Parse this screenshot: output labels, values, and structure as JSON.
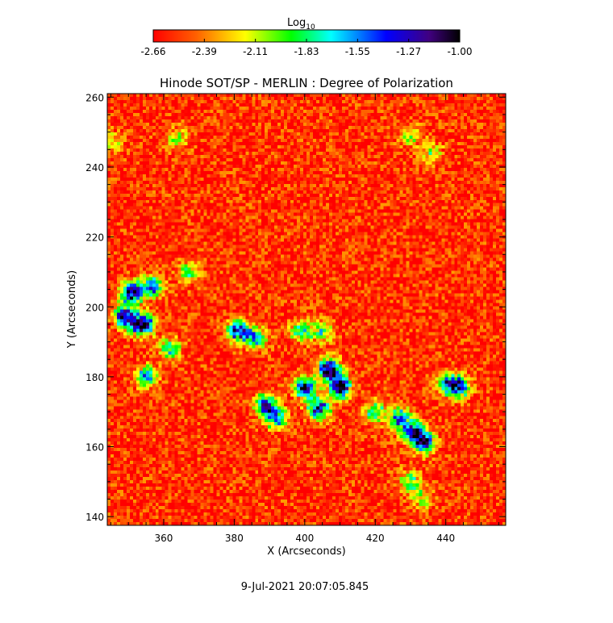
{
  "chart_data": {
    "type": "heatmap",
    "title": "Hinode SOT/SP - MERLIN : Degree of Polarization",
    "xlabel": "X (Arcseconds)",
    "ylabel": "Y (Arcseconds)",
    "xlim": [
      344,
      457
    ],
    "ylim": [
      137.5,
      261
    ],
    "x_ticks": [
      "360",
      "380",
      "400",
      "420",
      "440"
    ],
    "y_ticks": [
      "140",
      "160",
      "180",
      "200",
      "220",
      "240",
      "260"
    ],
    "x_tick_values": [
      360,
      380,
      400,
      420,
      440
    ],
    "y_tick_values": [
      140,
      160,
      180,
      200,
      220,
      240,
      260
    ],
    "colorbar": {
      "label_base": "Log",
      "label_sub": "10",
      "ticks": [
        "-2.66",
        "-2.39",
        "-2.11",
        "-1.83",
        "-1.55",
        "-1.27",
        "-1.00"
      ],
      "range": [
        -2.66,
        -1.0
      ],
      "colors": [
        "#ff0000",
        "#ff8000",
        "#ffff00",
        "#00ff00",
        "#00ffff",
        "#0000ff",
        "#000000"
      ]
    },
    "background_level": -2.55,
    "polarized_regions": [
      {
        "x": 351,
        "y": 204,
        "strength": 1.0
      },
      {
        "x": 354,
        "y": 195,
        "strength": 1.0
      },
      {
        "x": 349,
        "y": 197,
        "strength": 0.9
      },
      {
        "x": 357,
        "y": 206,
        "strength": 0.7
      },
      {
        "x": 355,
        "y": 180,
        "strength": 0.6
      },
      {
        "x": 362,
        "y": 188,
        "strength": 0.5
      },
      {
        "x": 367,
        "y": 210,
        "strength": 0.4
      },
      {
        "x": 381,
        "y": 193,
        "strength": 0.8
      },
      {
        "x": 386,
        "y": 191,
        "strength": 0.6
      },
      {
        "x": 389,
        "y": 172,
        "strength": 0.8
      },
      {
        "x": 392,
        "y": 168,
        "strength": 0.6
      },
      {
        "x": 400,
        "y": 177,
        "strength": 0.8
      },
      {
        "x": 407,
        "y": 182,
        "strength": 1.0
      },
      {
        "x": 410,
        "y": 177,
        "strength": 0.9
      },
      {
        "x": 404,
        "y": 171,
        "strength": 0.8
      },
      {
        "x": 399,
        "y": 193,
        "strength": 0.5
      },
      {
        "x": 420,
        "y": 170,
        "strength": 0.5
      },
      {
        "x": 427,
        "y": 168,
        "strength": 0.7
      },
      {
        "x": 431,
        "y": 164,
        "strength": 0.9
      },
      {
        "x": 434,
        "y": 161,
        "strength": 0.8
      },
      {
        "x": 441,
        "y": 178,
        "strength": 0.7
      },
      {
        "x": 444,
        "y": 177,
        "strength": 0.6
      },
      {
        "x": 430,
        "y": 150,
        "strength": 0.4
      },
      {
        "x": 433,
        "y": 145,
        "strength": 0.3
      },
      {
        "x": 405,
        "y": 193,
        "strength": 0.4
      },
      {
        "x": 364,
        "y": 248,
        "strength": 0.3
      },
      {
        "x": 430,
        "y": 249,
        "strength": 0.3
      },
      {
        "x": 436,
        "y": 244,
        "strength": 0.3
      },
      {
        "x": 345,
        "y": 247,
        "strength": 0.3
      }
    ],
    "timestamp": "9-Jul-2021 20:07:05.845"
  }
}
